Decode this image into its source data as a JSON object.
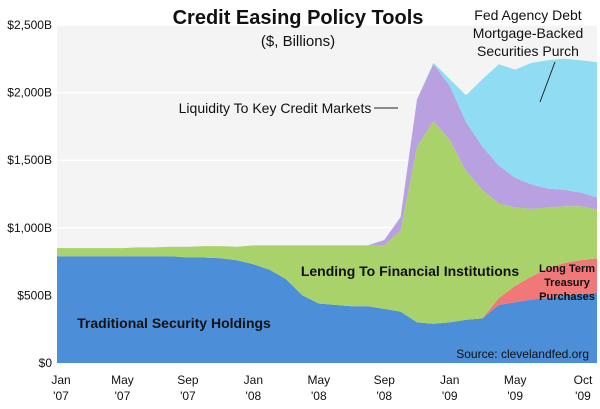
{
  "chart_data": {
    "type": "area",
    "stacked": true,
    "title": "Credit Easing Policy Tools",
    "subtitle": "($, Billions)",
    "xlabel": "",
    "ylabel": "",
    "source": "Source: clevelandfed.org",
    "x": [
      "2007-01",
      "2007-02",
      "2007-03",
      "2007-04",
      "2007-05",
      "2007-06",
      "2007-07",
      "2007-08",
      "2007-09",
      "2007-10",
      "2007-11",
      "2007-12",
      "2008-01",
      "2008-02",
      "2008-03",
      "2008-04",
      "2008-05",
      "2008-06",
      "2008-07",
      "2008-08",
      "2008-09",
      "2008-10",
      "2008-11",
      "2008-12",
      "2009-01",
      "2009-02",
      "2009-03",
      "2009-04",
      "2009-05",
      "2009-06",
      "2009-07",
      "2009-08",
      "2009-09",
      "2009-10"
    ],
    "x_tick_labels": [
      {
        "x": "2007-01",
        "line1": "Jan",
        "line2": "'07"
      },
      {
        "x": "2007-05",
        "line1": "May",
        "line2": "'07"
      },
      {
        "x": "2007-09",
        "line1": "Sep",
        "line2": "'07"
      },
      {
        "x": "2008-01",
        "line1": "Jan",
        "line2": "'08"
      },
      {
        "x": "2008-05",
        "line1": "May",
        "line2": "'08"
      },
      {
        "x": "2008-09",
        "line1": "Sep",
        "line2": "'08"
      },
      {
        "x": "2009-01",
        "line1": "Jan",
        "line2": "'09"
      },
      {
        "x": "2009-05",
        "line1": "May",
        "line2": "'09"
      },
      {
        "x": "2009-10",
        "line1": "Oct",
        "line2": "'09"
      }
    ],
    "y_ticks": [
      "$0",
      "$500B",
      "$1,000B",
      "$1,500B",
      "$2,000B",
      "$2,500B"
    ],
    "ylim": [
      0,
      2500
    ],
    "grid": "horizontal",
    "series": [
      {
        "name": "Traditional Security Holdings",
        "color": "#4c8fd8",
        "values": [
          790,
          790,
          790,
          790,
          790,
          790,
          790,
          790,
          780,
          780,
          775,
          760,
          730,
          690,
          620,
          500,
          440,
          430,
          420,
          420,
          400,
          380,
          300,
          290,
          300,
          320,
          330,
          430,
          450,
          470,
          480,
          500,
          510,
          520
        ]
      },
      {
        "name": "Long Term Treasury Purchases",
        "color": "#f07878",
        "values": [
          0,
          0,
          0,
          0,
          0,
          0,
          0,
          0,
          0,
          0,
          0,
          0,
          0,
          0,
          0,
          0,
          0,
          0,
          0,
          0,
          0,
          0,
          0,
          0,
          0,
          0,
          0,
          50,
          120,
          170,
          220,
          240,
          250,
          255
        ]
      },
      {
        "name": "Lending To Financial Institutions",
        "color": "#aad26a",
        "values": [
          60,
          60,
          60,
          60,
          60,
          65,
          65,
          70,
          80,
          85,
          90,
          100,
          140,
          180,
          250,
          370,
          430,
          440,
          450,
          450,
          470,
          600,
          1300,
          1500,
          1350,
          1100,
          950,
          700,
          580,
          500,
          450,
          420,
          400,
          360
        ]
      },
      {
        "name": "Liquidity To Key Credit Markets",
        "color": "#b9a0e0",
        "values": [
          0,
          0,
          0,
          0,
          0,
          0,
          0,
          0,
          0,
          0,
          0,
          0,
          0,
          0,
          0,
          0,
          0,
          0,
          0,
          0,
          40,
          100,
          350,
          420,
          400,
          360,
          320,
          280,
          220,
          180,
          140,
          120,
          100,
          90
        ]
      },
      {
        "name": "Fed Agency Debt Mortgage-Backed Securities Purch",
        "color": "#8fdcf3",
        "values": [
          0,
          0,
          0,
          0,
          0,
          0,
          0,
          0,
          0,
          0,
          0,
          0,
          0,
          0,
          0,
          0,
          0,
          0,
          0,
          0,
          0,
          0,
          0,
          10,
          50,
          200,
          500,
          750,
          800,
          900,
          950,
          970,
          980,
          1000
        ]
      }
    ]
  },
  "annotations": {
    "traditional": "Traditional Security Holdings",
    "lending": "Lending To Financial Institutions",
    "liquidity": "Liquidity To Key Credit Markets",
    "agency_line1": "Fed Agency Debt",
    "agency_line2": "Mortgage-Backed",
    "agency_line3": "Securities Purch",
    "treasury_line1": "Long Term",
    "treasury_line2": "Treasury",
    "treasury_line3": "Purchases"
  },
  "colors": {
    "plot_background": "#f4f4f4",
    "gridline": "#ffffff",
    "treasury_label": "#b02020"
  }
}
